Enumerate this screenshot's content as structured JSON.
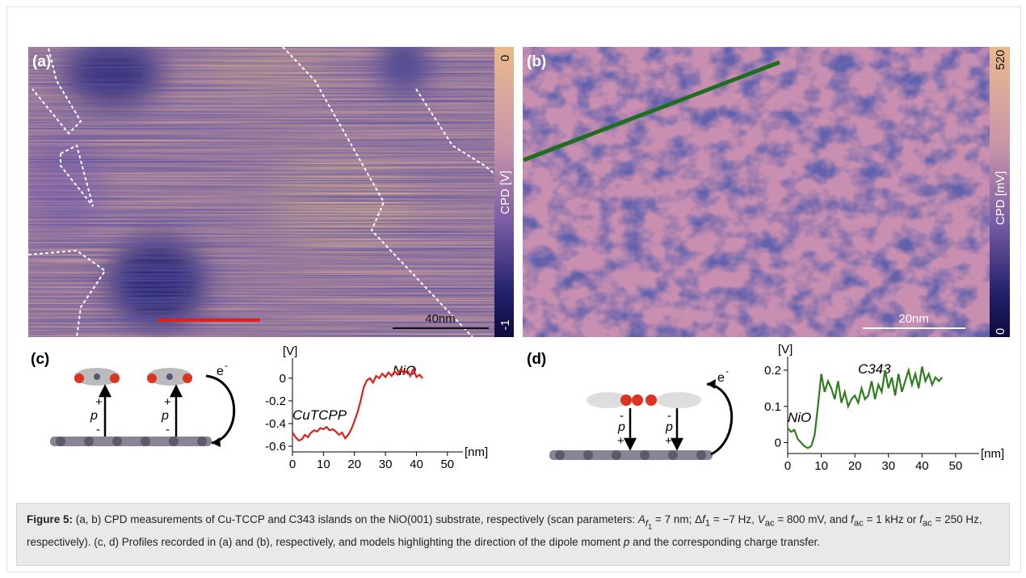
{
  "panels": {
    "a": {
      "label": "(a)",
      "colorbar_label": "CPD [V]",
      "colorbar_top": "0",
      "colorbar_bottom": "-1",
      "scale_bar": "40nm"
    },
    "b": {
      "label": "(b)",
      "colorbar_label": "CPD [mV]",
      "colorbar_top": "520",
      "colorbar_bottom": "0",
      "scale_bar": "20nm"
    },
    "c": {
      "label": "(c)",
      "electron": "e",
      "electron_charge": "-",
      "dipole": [
        "p",
        "p"
      ],
      "plus": [
        "+",
        "+"
      ],
      "minus": [
        "-",
        "-"
      ]
    },
    "d": {
      "label": "(d)",
      "electron": "e",
      "electron_charge": "-",
      "dipole": [
        "p",
        "p"
      ],
      "plus": [
        "+",
        "+"
      ],
      "minus": [
        "-",
        "-"
      ]
    }
  },
  "chart_data": [
    {
      "type": "line",
      "ylabel": "[V]",
      "xlabel": "[nm]",
      "annotations": [
        "CuTCPP",
        "NiO"
      ],
      "x": [
        0,
        1,
        2,
        3,
        4,
        5,
        6,
        7,
        8,
        9,
        10,
        11,
        12,
        13,
        14,
        15,
        16,
        17,
        18,
        19,
        20,
        21,
        22,
        23,
        24,
        25,
        26,
        27,
        28,
        29,
        30,
        31,
        32,
        33,
        34,
        35,
        36,
        37,
        38,
        39,
        40,
        41,
        42
      ],
      "series": [
        {
          "color": "#e0201b",
          "values": [
            -0.48,
            -0.52,
            -0.55,
            -0.54,
            -0.5,
            -0.52,
            -0.48,
            -0.46,
            -0.47,
            -0.44,
            -0.45,
            -0.43,
            -0.46,
            -0.45,
            -0.47,
            -0.5,
            -0.48,
            -0.53,
            -0.5,
            -0.45,
            -0.38,
            -0.3,
            -0.2,
            -0.08,
            -0.02,
            0.0,
            -0.04,
            0.02,
            0.0,
            0.04,
            0.01,
            0.05,
            0.02,
            0.06,
            0.03,
            0.08,
            0.04,
            0.07,
            0.02,
            0.08,
            0.01,
            0.03,
            0.0
          ]
        }
      ],
      "xlim": [
        0,
        55
      ],
      "xticks": [
        0,
        10,
        20,
        30,
        40,
        50
      ],
      "ylim": [
        -0.65,
        0.12
      ],
      "yticks": [
        -0.6,
        -0.4,
        -0.2,
        0
      ]
    },
    {
      "type": "line",
      "ylabel": "[V]",
      "xlabel": "[nm]",
      "annotations": [
        "NiO",
        "C343"
      ],
      "x": [
        0,
        1,
        2,
        3,
        4,
        5,
        6,
        7,
        8,
        9,
        10,
        11,
        12,
        13,
        14,
        15,
        16,
        17,
        18,
        19,
        20,
        21,
        22,
        23,
        24,
        25,
        26,
        27,
        28,
        29,
        30,
        31,
        32,
        33,
        34,
        35,
        36,
        37,
        38,
        39,
        40,
        41,
        42,
        43,
        44,
        45,
        46
      ],
      "series": [
        {
          "color": "#2e7d1e",
          "values": [
            0.04,
            0.03,
            0.035,
            0.01,
            0.0,
            -0.01,
            -0.015,
            -0.01,
            0.02,
            0.1,
            0.19,
            0.14,
            0.17,
            0.15,
            0.12,
            0.17,
            0.11,
            0.14,
            0.1,
            0.12,
            0.13,
            0.11,
            0.15,
            0.12,
            0.13,
            0.17,
            0.12,
            0.16,
            0.14,
            0.2,
            0.15,
            0.18,
            0.13,
            0.19,
            0.14,
            0.17,
            0.2,
            0.16,
            0.19,
            0.15,
            0.21,
            0.17,
            0.19,
            0.16,
            0.18,
            0.17,
            0.18
          ]
        }
      ],
      "xlim": [
        0,
        57
      ],
      "xticks": [
        0,
        10,
        20,
        30,
        40,
        50
      ],
      "ylim": [
        -0.03,
        0.22
      ],
      "yticks": [
        0,
        0.1,
        0.2
      ]
    }
  ],
  "caption": {
    "label": "Figure 5:",
    "parts": [
      "(a, b) CPD measurements of Cu-TCCP and C343 islands on the NiO(001) substrate, respectively (scan parameters: ",
      "A",
      "f",
      "1",
      " = 7 nm; Δ",
      "f",
      "1",
      " = −7 Hz, ",
      "V",
      "ac",
      " = 800 mV, and ",
      "f",
      "ac",
      " = 1 kHz or ",
      "f",
      "ac",
      " = 250 Hz, respectively). (c, d) Profiles recorded in (a) and (b), respectively, and models highlighting the direction of the dipole moment ",
      "p",
      " and the corresponding charge transfer."
    ]
  }
}
